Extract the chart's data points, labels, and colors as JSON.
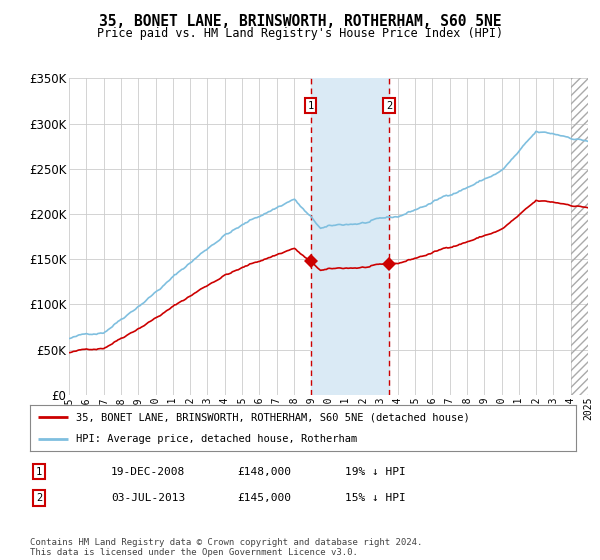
{
  "title": "35, BONET LANE, BRINSWORTH, ROTHERHAM, S60 5NE",
  "subtitle": "Price paid vs. HM Land Registry's House Price Index (HPI)",
  "legend_line1": "35, BONET LANE, BRINSWORTH, ROTHERHAM, S60 5NE (detached house)",
  "legend_line2": "HPI: Average price, detached house, Rotherham",
  "annotation1_date": "19-DEC-2008",
  "annotation1_price": "£148,000",
  "annotation1_hpi": "19% ↓ HPI",
  "annotation2_date": "03-JUL-2013",
  "annotation2_price": "£145,000",
  "annotation2_hpi": "15% ↓ HPI",
  "footnote": "Contains HM Land Registry data © Crown copyright and database right 2024.\nThis data is licensed under the Open Government Licence v3.0.",
  "purchase1_year": 2008.97,
  "purchase2_year": 2013.5,
  "purchase1_value": 148000,
  "purchase2_value": 145000,
  "hpi_color": "#7fbfdf",
  "price_color": "#cc0000",
  "background_color": "#ffffff",
  "grid_color": "#cccccc",
  "highlight_color": "#daeaf5",
  "xmin": 1995,
  "xmax": 2025,
  "ymin": 0,
  "ymax": 350000
}
